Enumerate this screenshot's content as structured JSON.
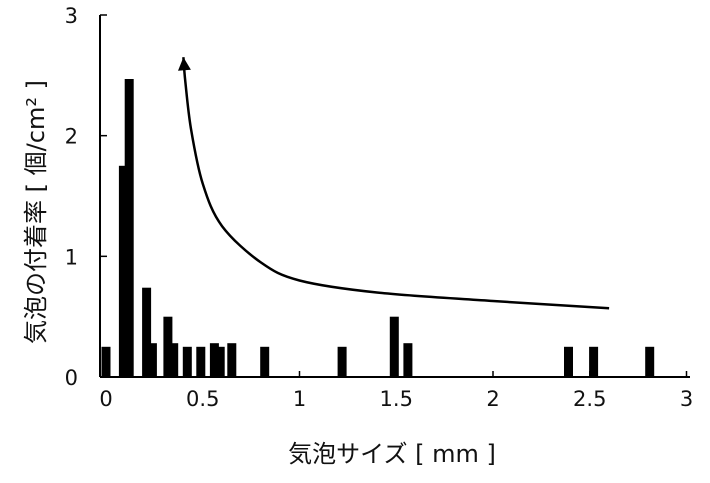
{
  "chart_data": {
    "type": "bar",
    "title": "",
    "xlabel": "気泡サイズ [ mm ]",
    "ylabel": "気泡の付着率 [ 個/cm² ]",
    "xlim": [
      -0.05,
      3.0
    ],
    "ylim": [
      0,
      3
    ],
    "x_ticks": [
      {
        "value": 0,
        "label": "0"
      },
      {
        "value": 0.5,
        "label": "0.5"
      },
      {
        "value": 1,
        "label": "1"
      },
      {
        "value": 1.5,
        "label": "1.5"
      },
      {
        "value": 2,
        "label": "2"
      },
      {
        "value": 2.5,
        "label": "2.5"
      },
      {
        "value": 3,
        "label": "3"
      }
    ],
    "y_ticks": [
      {
        "value": 0,
        "label": "0"
      },
      {
        "value": 1,
        "label": "1"
      },
      {
        "value": 2,
        "label": "2"
      },
      {
        "value": 3,
        "label": "3"
      }
    ],
    "bars": [
      {
        "x": 0.0,
        "y": 0.25
      },
      {
        "x": 0.09,
        "y": 1.75
      },
      {
        "x": 0.12,
        "y": 2.47
      },
      {
        "x": 0.21,
        "y": 0.74
      },
      {
        "x": 0.24,
        "y": 0.28
      },
      {
        "x": 0.32,
        "y": 0.5
      },
      {
        "x": 0.35,
        "y": 0.28
      },
      {
        "x": 0.42,
        "y": 0.25
      },
      {
        "x": 0.49,
        "y": 0.25
      },
      {
        "x": 0.56,
        "y": 0.28
      },
      {
        "x": 0.59,
        "y": 0.25
      },
      {
        "x": 0.65,
        "y": 0.28
      },
      {
        "x": 0.82,
        "y": 0.25
      },
      {
        "x": 1.22,
        "y": 0.25
      },
      {
        "x": 1.49,
        "y": 0.5
      },
      {
        "x": 1.56,
        "y": 0.28
      },
      {
        "x": 2.39,
        "y": 0.25
      },
      {
        "x": 2.52,
        "y": 0.25
      },
      {
        "x": 2.81,
        "y": 0.25
      }
    ],
    "trend_arrow": {
      "direction": "toward-small-size",
      "points": [
        [
          2.6,
          0.57
        ],
        [
          2.0,
          0.63
        ],
        [
          1.4,
          0.7
        ],
        [
          1.0,
          0.8
        ],
        [
          0.8,
          0.95
        ],
        [
          0.6,
          1.25
        ],
        [
          0.5,
          1.6
        ],
        [
          0.44,
          2.05
        ],
        [
          0.41,
          2.45
        ],
        [
          0.4,
          2.65
        ]
      ]
    },
    "grid": false,
    "legend": "none",
    "colors": {
      "bar": "#000000",
      "axis": "#000000",
      "text": "#111111"
    }
  }
}
